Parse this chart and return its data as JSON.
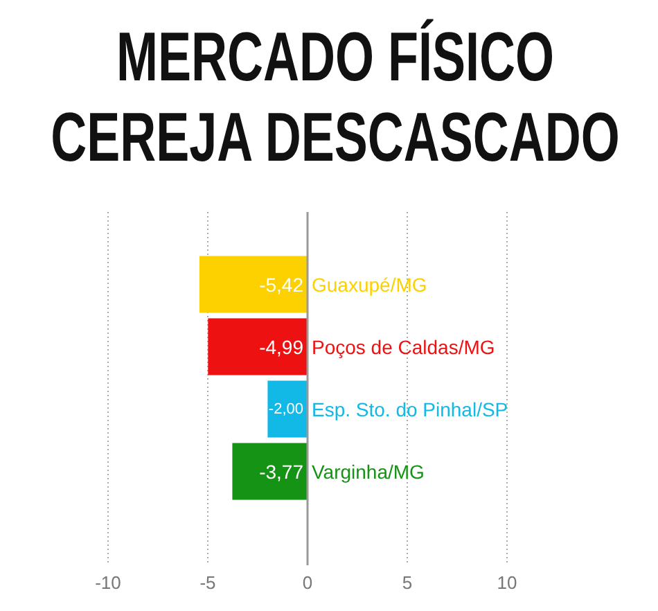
{
  "chart_data": {
    "type": "bar",
    "orientation": "horizontal",
    "title": "MERCADO FÍSICO CEREJA DESCASCADO",
    "categories": [
      "Guaxupé/MG",
      "Poços de Caldas/MG",
      "Esp. Sto. do Pinhal/SP",
      "Varginha/MG"
    ],
    "values": [
      -5.42,
      -4.99,
      -2.0,
      -3.77
    ],
    "colors": [
      "#fdd000",
      "#ee1111",
      "#12b8e6",
      "#159315"
    ],
    "value_labels": [
      "-5,42",
      "-4,99",
      "-2,00",
      "-3,77"
    ],
    "xlim": [
      -10,
      10
    ],
    "xticks": [
      -10,
      -5,
      0,
      5,
      10
    ],
    "grid": "x",
    "ref_lines": [
      {
        "axis": "x",
        "value": 0,
        "color": "#999999"
      }
    ]
  }
}
